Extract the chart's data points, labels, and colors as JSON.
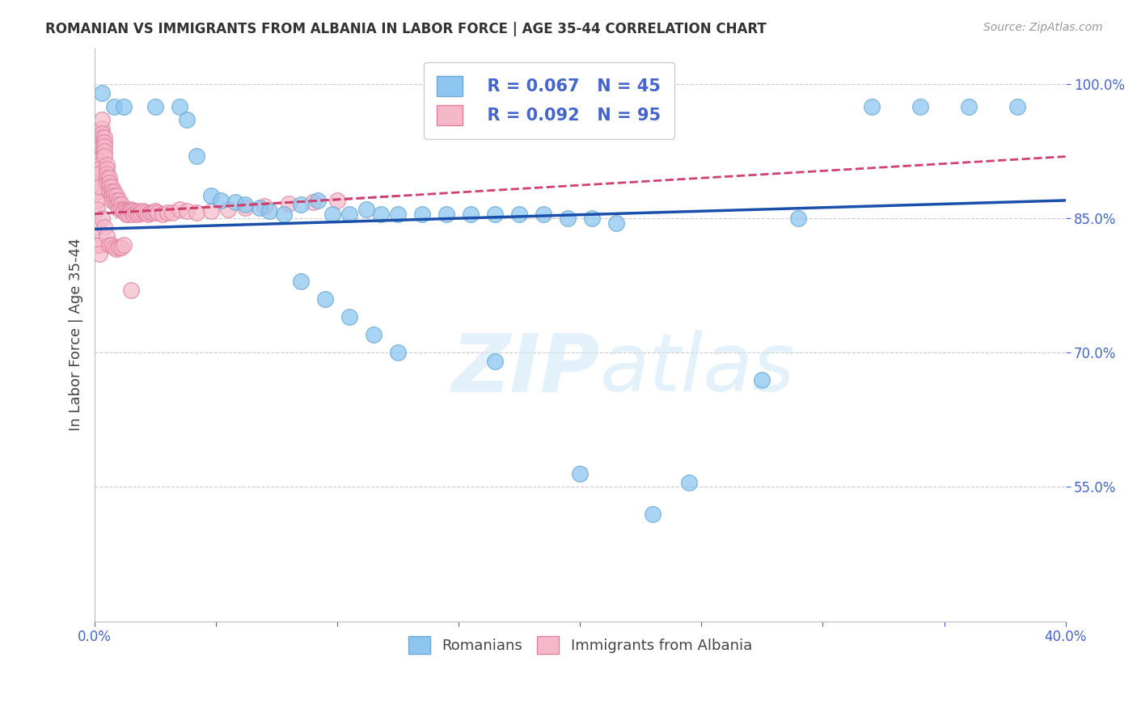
{
  "title": "ROMANIAN VS IMMIGRANTS FROM ALBANIA IN LABOR FORCE | AGE 35-44 CORRELATION CHART",
  "source": "Source: ZipAtlas.com",
  "ylabel": "In Labor Force | Age 35-44",
  "xlim": [
    0.0,
    0.4
  ],
  "ylim": [
    0.4,
    1.04
  ],
  "xticks": [
    0.0,
    0.05,
    0.1,
    0.15,
    0.2,
    0.25,
    0.3,
    0.35,
    0.4
  ],
  "xticklabels": [
    "0.0%",
    "",
    "",
    "",
    "",
    "",
    "",
    "",
    "40.0%"
  ],
  "yticks": [
    0.55,
    0.7,
    0.85,
    1.0
  ],
  "yticklabels": [
    "55.0%",
    "70.0%",
    "85.0%",
    "100.0%"
  ],
  "grid_color": "#cccccc",
  "background_color": "#ffffff",
  "blue_color": "#8ec6f0",
  "blue_edge_color": "#6aaad4",
  "blue_line_color": "#1a4faa",
  "pink_color": "#f5b8c8",
  "pink_edge_color": "#e080a0",
  "pink_line_color": "#d04070",
  "legend_blue_r": "R = 0.067",
  "legend_blue_n": "N = 45",
  "legend_pink_r": "R = 0.092",
  "legend_pink_n": "N = 95",
  "watermark_zip": "ZIP",
  "watermark_atlas": "atlas",
  "blue_scatter_x": [
    0.003,
    0.008,
    0.012,
    0.025,
    0.035,
    0.038,
    0.042,
    0.048,
    0.052,
    0.058,
    0.062,
    0.068,
    0.072,
    0.078,
    0.085,
    0.092,
    0.098,
    0.105,
    0.112,
    0.118,
    0.125,
    0.135,
    0.145,
    0.155,
    0.165,
    0.175,
    0.185,
    0.195,
    0.205,
    0.215,
    0.085,
    0.095,
    0.105,
    0.115,
    0.125,
    0.32,
    0.34,
    0.36,
    0.38,
    0.29,
    0.165,
    0.275,
    0.245,
    0.23,
    0.2
  ],
  "blue_scatter_y": [
    0.99,
    0.975,
    0.975,
    0.975,
    0.975,
    0.96,
    0.92,
    0.875,
    0.87,
    0.868,
    0.865,
    0.862,
    0.858,
    0.855,
    0.865,
    0.87,
    0.855,
    0.855,
    0.86,
    0.855,
    0.855,
    0.855,
    0.855,
    0.855,
    0.855,
    0.855,
    0.855,
    0.85,
    0.85,
    0.845,
    0.78,
    0.76,
    0.74,
    0.72,
    0.7,
    0.975,
    0.975,
    0.975,
    0.975,
    0.85,
    0.69,
    0.67,
    0.555,
    0.52,
    0.565
  ],
  "pink_scatter_x": [
    0.001,
    0.001,
    0.001,
    0.001,
    0.002,
    0.002,
    0.002,
    0.002,
    0.002,
    0.002,
    0.002,
    0.003,
    0.003,
    0.003,
    0.003,
    0.003,
    0.003,
    0.004,
    0.004,
    0.004,
    0.004,
    0.004,
    0.005,
    0.005,
    0.005,
    0.005,
    0.005,
    0.006,
    0.006,
    0.006,
    0.006,
    0.007,
    0.007,
    0.007,
    0.007,
    0.008,
    0.008,
    0.008,
    0.009,
    0.009,
    0.009,
    0.01,
    0.01,
    0.01,
    0.011,
    0.011,
    0.012,
    0.012,
    0.013,
    0.013,
    0.014,
    0.014,
    0.015,
    0.015,
    0.016,
    0.016,
    0.017,
    0.018,
    0.018,
    0.019,
    0.02,
    0.021,
    0.022,
    0.023,
    0.024,
    0.025,
    0.026,
    0.028,
    0.03,
    0.032,
    0.035,
    0.038,
    0.042,
    0.048,
    0.055,
    0.062,
    0.07,
    0.08,
    0.09,
    0.1,
    0.001,
    0.001,
    0.002,
    0.002,
    0.003,
    0.004,
    0.005,
    0.006,
    0.007,
    0.008,
    0.009,
    0.01,
    0.011,
    0.012,
    0.015
  ],
  "pink_scatter_y": [
    0.88,
    0.89,
    0.87,
    0.86,
    0.92,
    0.93,
    0.915,
    0.91,
    0.905,
    0.9,
    0.885,
    0.95,
    0.96,
    0.945,
    0.94,
    0.935,
    0.93,
    0.94,
    0.935,
    0.93,
    0.925,
    0.92,
    0.91,
    0.905,
    0.9,
    0.895,
    0.89,
    0.895,
    0.89,
    0.885,
    0.88,
    0.885,
    0.88,
    0.875,
    0.87,
    0.88,
    0.875,
    0.87,
    0.875,
    0.87,
    0.865,
    0.87,
    0.865,
    0.86,
    0.865,
    0.86,
    0.86,
    0.858,
    0.858,
    0.855,
    0.858,
    0.855,
    0.86,
    0.858,
    0.858,
    0.855,
    0.856,
    0.858,
    0.855,
    0.856,
    0.858,
    0.856,
    0.855,
    0.856,
    0.856,
    0.858,
    0.856,
    0.855,
    0.856,
    0.856,
    0.86,
    0.858,
    0.856,
    0.858,
    0.86,
    0.862,
    0.864,
    0.866,
    0.868,
    0.87,
    0.84,
    0.82,
    0.82,
    0.81,
    0.85,
    0.84,
    0.83,
    0.82,
    0.82,
    0.818,
    0.816,
    0.818,
    0.818,
    0.82,
    0.77
  ],
  "blue_line_x": [
    0.0,
    0.4
  ],
  "blue_line_y": [
    0.838,
    0.87
  ],
  "pink_line_x": [
    0.0,
    0.125
  ],
  "pink_line_y": [
    0.855,
    0.875
  ]
}
